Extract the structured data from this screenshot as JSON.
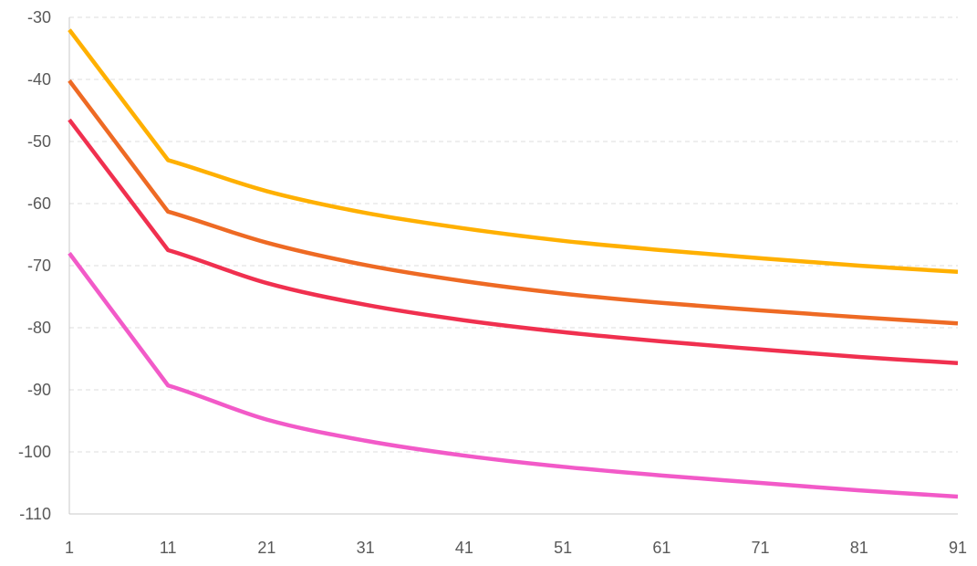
{
  "chart_data": {
    "type": "line",
    "title": "",
    "xlabel": "",
    "ylabel": "",
    "x": [
      1,
      11,
      21,
      31,
      41,
      51,
      61,
      71,
      81,
      91
    ],
    "x_ticks": [
      "1",
      "11",
      "21",
      "31",
      "41",
      "51",
      "61",
      "71",
      "81",
      "91"
    ],
    "y_ticks": [
      "-30",
      "-40",
      "-50",
      "-60",
      "-70",
      "-80",
      "-90",
      "-100",
      "-110"
    ],
    "ylim": [
      -110,
      -30
    ],
    "xlim": [
      1,
      91
    ],
    "grid": true,
    "legend": "none",
    "series": [
      {
        "color": "#FFB000",
        "values": [
          -32,
          -53,
          -58,
          -61.5,
          -64,
          -66,
          -67.5,
          -68.8,
          -70,
          -71
        ]
      },
      {
        "color": "#EE6A24",
        "values": [
          -40.2,
          -61.3,
          -66.3,
          -69.9,
          -72.5,
          -74.5,
          -76,
          -77.2,
          -78.3,
          -79.3
        ]
      },
      {
        "color": "#F0304F",
        "values": [
          -46.5,
          -67.5,
          -72.8,
          -76.3,
          -78.8,
          -80.7,
          -82.2,
          -83.5,
          -84.7,
          -85.7
        ]
      },
      {
        "color": "#F25AC8",
        "values": [
          -68,
          -89.3,
          -94.8,
          -98.2,
          -100.6,
          -102.4,
          -103.8,
          -105,
          -106.2,
          -107.2
        ]
      }
    ]
  }
}
